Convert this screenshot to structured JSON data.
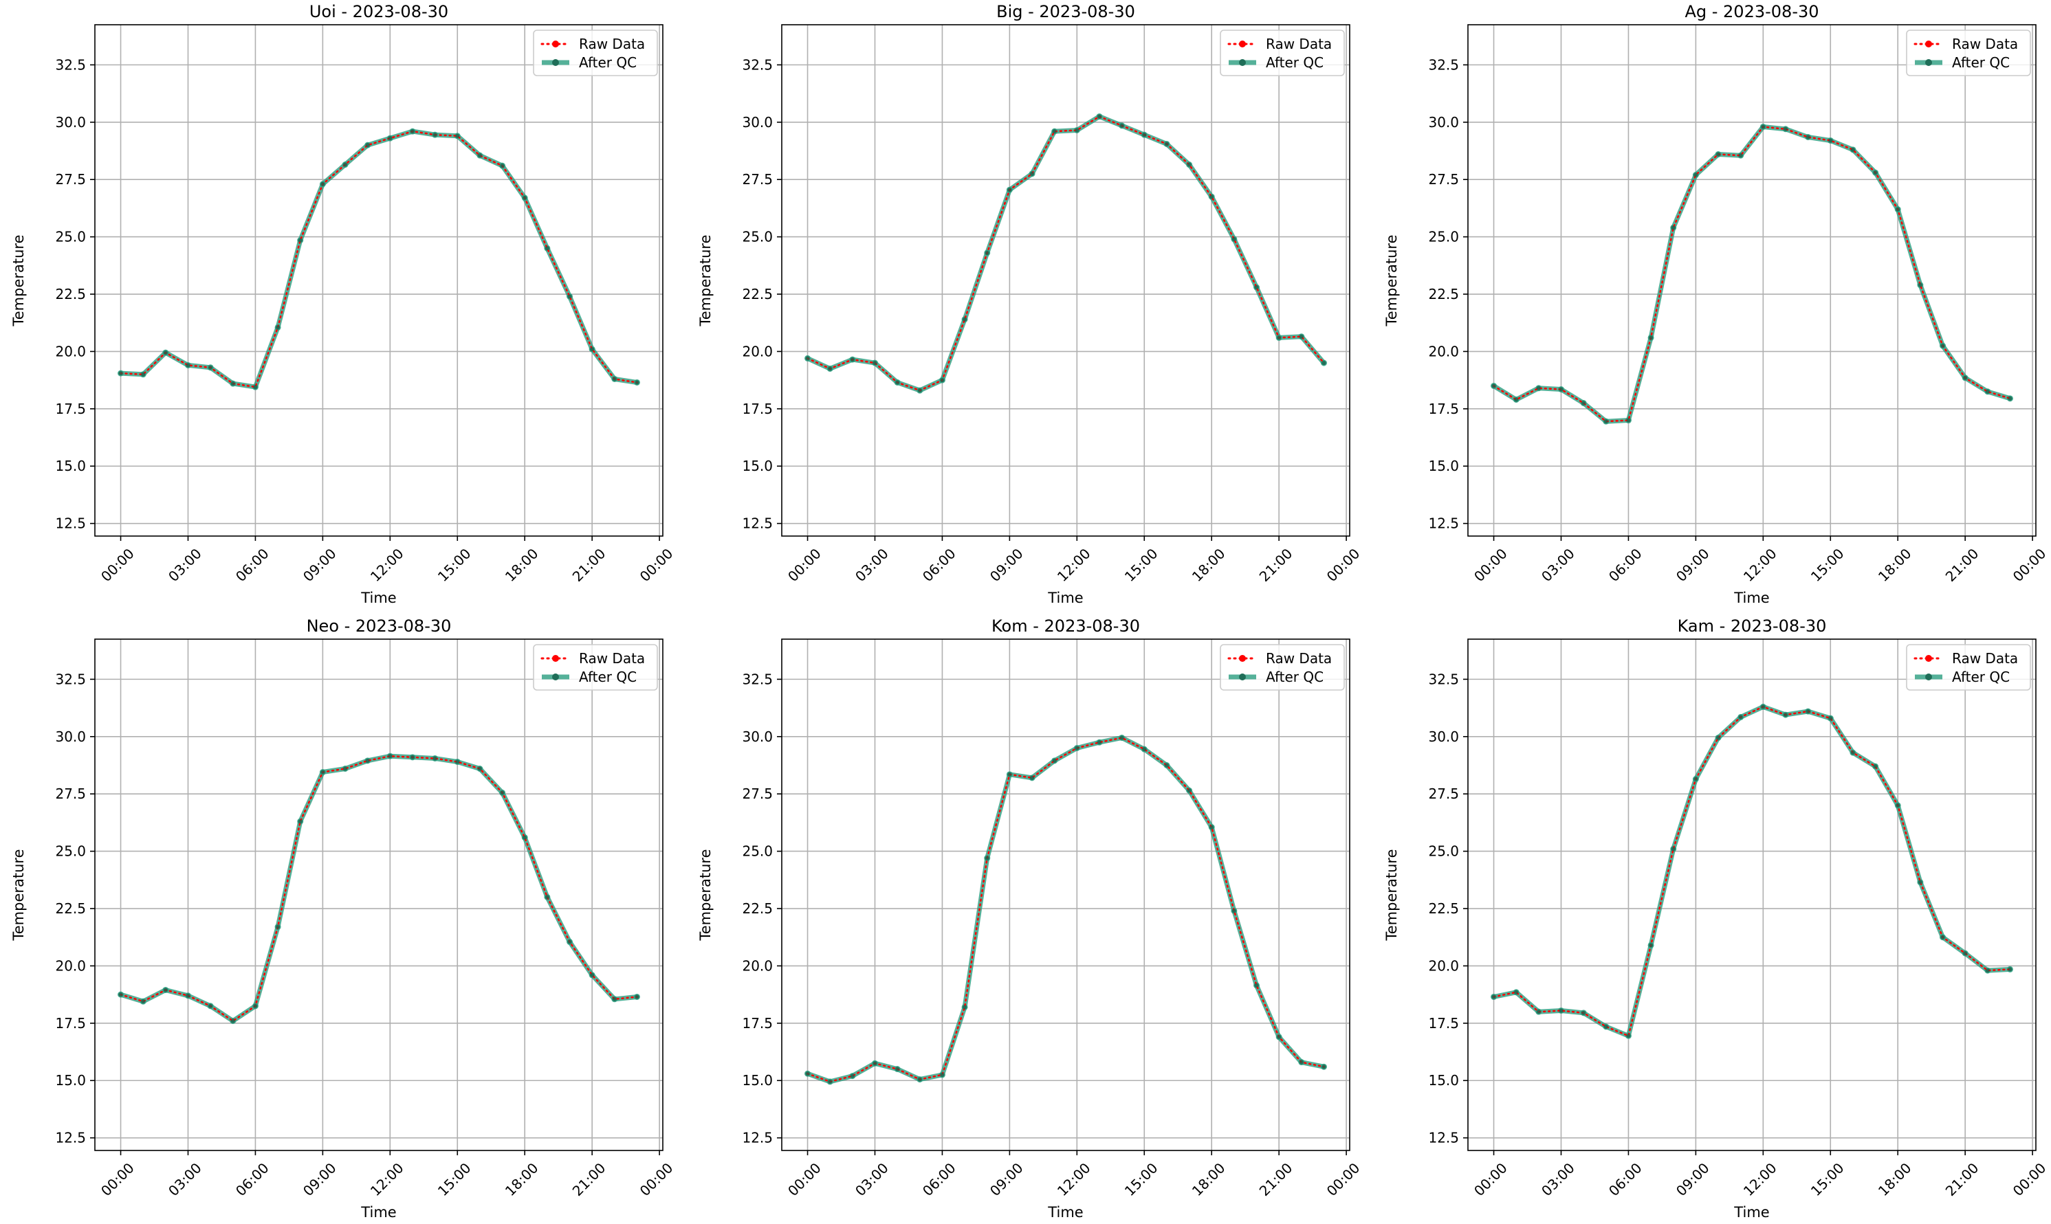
{
  "chart_data": [
    {
      "type": "line",
      "title": "Uoi - 2023-08-30",
      "xlabel": "Time",
      "ylabel": "Temperature",
      "ylim": [
        11.95,
        34.25
      ],
      "yticks": [
        "12.5",
        "15.0",
        "17.5",
        "20.0",
        "22.5",
        "25.0",
        "27.5",
        "30.0",
        "32.5"
      ],
      "xticks": [
        "00:00",
        "03:00",
        "06:00",
        "09:00",
        "12:00",
        "15:00",
        "18:00",
        "21:00",
        "00:00"
      ],
      "xlim_hours": [
        -1.15,
        24.15
      ],
      "grid": true,
      "legend": "top-right",
      "x_hours": [
        0,
        1,
        2,
        3,
        4,
        5,
        6,
        7,
        8,
        9,
        10,
        11,
        12,
        13,
        14,
        15,
        16,
        17,
        18,
        19,
        20,
        21,
        22,
        23
      ],
      "series": [
        {
          "name": "Raw Data",
          "color": "#ff0000",
          "values": [
            19.05,
            19.0,
            19.95,
            19.4,
            19.3,
            18.6,
            18.45,
            21.05,
            24.85,
            27.3,
            28.15,
            29.0,
            29.3,
            29.6,
            29.45,
            29.4,
            28.55,
            28.1,
            26.7,
            24.5,
            22.4,
            20.1,
            18.8,
            18.65
          ]
        },
        {
          "name": "After QC",
          "color": "#2a9d7f",
          "values": [
            19.05,
            19.0,
            19.95,
            19.4,
            19.3,
            18.6,
            18.45,
            21.05,
            24.85,
            27.3,
            28.15,
            29.0,
            29.3,
            29.6,
            29.45,
            29.4,
            28.55,
            28.1,
            26.7,
            24.5,
            22.4,
            20.1,
            18.8,
            18.65
          ]
        }
      ]
    },
    {
      "type": "line",
      "title": "Big - 2023-08-30",
      "xlabel": "Time",
      "ylabel": "Temperature",
      "ylim": [
        11.95,
        34.25
      ],
      "yticks": [
        "12.5",
        "15.0",
        "17.5",
        "20.0",
        "22.5",
        "25.0",
        "27.5",
        "30.0",
        "32.5"
      ],
      "xticks": [
        "00:00",
        "03:00",
        "06:00",
        "09:00",
        "12:00",
        "15:00",
        "18:00",
        "21:00",
        "00:00"
      ],
      "xlim_hours": [
        -1.15,
        24.15
      ],
      "grid": true,
      "legend": "top-right",
      "x_hours": [
        0,
        1,
        2,
        3,
        4,
        5,
        6,
        7,
        8,
        9,
        10,
        11,
        12,
        13,
        14,
        15,
        16,
        17,
        18,
        19,
        20,
        21,
        22,
        23
      ],
      "series": [
        {
          "name": "Raw Data",
          "color": "#ff0000",
          "values": [
            19.7,
            19.25,
            19.65,
            19.5,
            18.65,
            18.3,
            18.75,
            21.4,
            24.3,
            27.05,
            27.75,
            29.6,
            29.65,
            30.25,
            29.85,
            29.45,
            29.05,
            28.15,
            26.75,
            24.9,
            22.8,
            20.6,
            20.65,
            19.5
          ]
        },
        {
          "name": "After QC",
          "color": "#2a9d7f",
          "values": [
            19.7,
            19.25,
            19.65,
            19.5,
            18.65,
            18.3,
            18.75,
            21.4,
            24.3,
            27.05,
            27.75,
            29.6,
            29.65,
            30.25,
            29.85,
            29.45,
            29.05,
            28.15,
            26.75,
            24.9,
            22.8,
            20.6,
            20.65,
            19.5
          ]
        }
      ]
    },
    {
      "type": "line",
      "title": "Ag - 2023-08-30",
      "xlabel": "Time",
      "ylabel": "Temperature",
      "ylim": [
        11.95,
        34.25
      ],
      "yticks": [
        "12.5",
        "15.0",
        "17.5",
        "20.0",
        "22.5",
        "25.0",
        "27.5",
        "30.0",
        "32.5"
      ],
      "xticks": [
        "00:00",
        "03:00",
        "06:00",
        "09:00",
        "12:00",
        "15:00",
        "18:00",
        "21:00",
        "00:00"
      ],
      "xlim_hours": [
        -1.15,
        24.15
      ],
      "grid": true,
      "legend": "top-right",
      "x_hours": [
        0,
        1,
        2,
        3,
        4,
        5,
        6,
        7,
        8,
        9,
        10,
        11,
        12,
        13,
        14,
        15,
        16,
        17,
        18,
        19,
        20,
        21,
        22,
        23
      ],
      "series": [
        {
          "name": "Raw Data",
          "color": "#ff0000",
          "values": [
            18.5,
            17.9,
            18.4,
            18.35,
            17.75,
            16.95,
            17.0,
            20.6,
            25.4,
            27.7,
            28.6,
            28.55,
            29.8,
            29.7,
            29.35,
            29.2,
            28.8,
            27.8,
            26.2,
            22.9,
            20.25,
            18.85,
            18.25,
            17.95
          ]
        },
        {
          "name": "After QC",
          "color": "#2a9d7f",
          "values": [
            18.5,
            17.9,
            18.4,
            18.35,
            17.75,
            16.95,
            17.0,
            20.6,
            25.4,
            27.7,
            28.6,
            28.55,
            29.8,
            29.7,
            29.35,
            29.2,
            28.8,
            27.8,
            26.2,
            22.9,
            20.25,
            18.85,
            18.25,
            17.95
          ]
        }
      ]
    },
    {
      "type": "line",
      "title": "Neo - 2023-08-30",
      "xlabel": "Time",
      "ylabel": "Temperature",
      "ylim": [
        11.95,
        34.25
      ],
      "yticks": [
        "12.5",
        "15.0",
        "17.5",
        "20.0",
        "22.5",
        "25.0",
        "27.5",
        "30.0",
        "32.5"
      ],
      "xticks": [
        "00:00",
        "03:00",
        "06:00",
        "09:00",
        "12:00",
        "15:00",
        "18:00",
        "21:00",
        "00:00"
      ],
      "xlim_hours": [
        -1.15,
        24.15
      ],
      "grid": true,
      "legend": "top-right",
      "x_hours": [
        0,
        1,
        2,
        3,
        4,
        5,
        6,
        7,
        8,
        9,
        10,
        11,
        12,
        13,
        14,
        15,
        16,
        17,
        18,
        19,
        20,
        21,
        22,
        23
      ],
      "series": [
        {
          "name": "Raw Data",
          "color": "#ff0000",
          "values": [
            18.75,
            18.45,
            18.95,
            18.7,
            18.25,
            17.6,
            18.25,
            21.7,
            26.3,
            28.45,
            28.6,
            28.95,
            29.15,
            29.1,
            29.05,
            28.9,
            28.6,
            27.55,
            25.6,
            23.0,
            21.05,
            19.6,
            18.55,
            18.65
          ]
        },
        {
          "name": "After QC",
          "color": "#2a9d7f",
          "values": [
            18.75,
            18.45,
            18.95,
            18.7,
            18.25,
            17.6,
            18.25,
            21.7,
            26.3,
            28.45,
            28.6,
            28.95,
            29.15,
            29.1,
            29.05,
            28.9,
            28.6,
            27.55,
            25.6,
            23.0,
            21.05,
            19.6,
            18.55,
            18.65
          ]
        }
      ]
    },
    {
      "type": "line",
      "title": "Kom - 2023-08-30",
      "xlabel": "Time",
      "ylabel": "Temperature",
      "ylim": [
        11.95,
        34.25
      ],
      "yticks": [
        "12.5",
        "15.0",
        "17.5",
        "20.0",
        "22.5",
        "25.0",
        "27.5",
        "30.0",
        "32.5"
      ],
      "xticks": [
        "00:00",
        "03:00",
        "06:00",
        "09:00",
        "12:00",
        "15:00",
        "18:00",
        "21:00",
        "00:00"
      ],
      "xlim_hours": [
        -1.15,
        24.15
      ],
      "grid": true,
      "legend": "top-right",
      "x_hours": [
        0,
        1,
        2,
        3,
        4,
        5,
        6,
        7,
        8,
        9,
        10,
        11,
        12,
        13,
        14,
        15,
        16,
        17,
        18,
        19,
        20,
        21,
        22,
        23
      ],
      "series": [
        {
          "name": "Raw Data",
          "color": "#ff0000",
          "values": [
            15.3,
            14.95,
            15.2,
            15.75,
            15.5,
            15.05,
            15.25,
            18.2,
            24.7,
            28.35,
            28.2,
            28.95,
            29.5,
            29.75,
            29.95,
            29.45,
            28.75,
            27.65,
            26.05,
            22.4,
            19.15,
            16.9,
            15.8,
            15.6
          ]
        },
        {
          "name": "After QC",
          "color": "#2a9d7f",
          "values": [
            15.3,
            14.95,
            15.2,
            15.75,
            15.5,
            15.05,
            15.25,
            18.2,
            24.7,
            28.35,
            28.2,
            28.95,
            29.5,
            29.75,
            29.95,
            29.45,
            28.75,
            27.65,
            26.05,
            22.4,
            19.15,
            16.9,
            15.8,
            15.6
          ]
        }
      ]
    },
    {
      "type": "line",
      "title": "Kam - 2023-08-30",
      "xlabel": "Time",
      "ylabel": "Temperature",
      "ylim": [
        11.95,
        34.25
      ],
      "yticks": [
        "12.5",
        "15.0",
        "17.5",
        "20.0",
        "22.5",
        "25.0",
        "27.5",
        "30.0",
        "32.5"
      ],
      "xticks": [
        "00:00",
        "03:00",
        "06:00",
        "09:00",
        "12:00",
        "15:00",
        "18:00",
        "21:00",
        "00:00"
      ],
      "xlim_hours": [
        -1.15,
        24.15
      ],
      "grid": true,
      "legend": "top-right",
      "x_hours": [
        0,
        1,
        2,
        3,
        4,
        5,
        6,
        7,
        8,
        9,
        10,
        11,
        12,
        13,
        14,
        15,
        16,
        17,
        18,
        19,
        20,
        21,
        22,
        23
      ],
      "series": [
        {
          "name": "Raw Data",
          "color": "#ff0000",
          "values": [
            18.65,
            18.85,
            18.0,
            18.05,
            17.95,
            17.35,
            16.95,
            20.9,
            25.1,
            28.15,
            29.95,
            30.85,
            31.3,
            30.95,
            31.1,
            30.8,
            29.3,
            28.7,
            27.0,
            23.65,
            21.25,
            20.55,
            19.8,
            19.85
          ]
        },
        {
          "name": "After QC",
          "color": "#2a9d7f",
          "values": [
            18.65,
            18.85,
            18.0,
            18.05,
            17.95,
            17.35,
            16.95,
            20.9,
            25.1,
            28.15,
            29.95,
            30.85,
            31.3,
            30.95,
            31.1,
            30.8,
            29.3,
            28.7,
            27.0,
            23.65,
            21.25,
            20.55,
            19.8,
            19.85
          ]
        }
      ]
    }
  ]
}
